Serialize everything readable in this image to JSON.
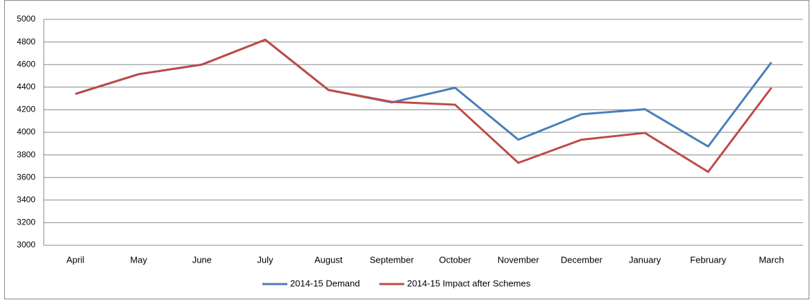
{
  "chart_data": {
    "type": "line",
    "categories": [
      "April",
      "May",
      "June",
      "July",
      "August",
      "September",
      "October",
      "November",
      "December",
      "January",
      "February",
      "March"
    ],
    "series": [
      {
        "name": "2014-15 Demand",
        "color": "#4a7ebb",
        "values": [
          4340,
          4515,
          4600,
          4820,
          4375,
          4265,
          4395,
          3935,
          4160,
          4205,
          3875,
          4620
        ]
      },
      {
        "name": "2014-15 Impact after Schemes",
        "color": "#be4b48",
        "values": [
          4340,
          4515,
          4600,
          4820,
          4375,
          4270,
          4245,
          3730,
          3935,
          3995,
          3650,
          4395
        ]
      }
    ],
    "ylim": [
      3000,
      5000
    ],
    "yticks": [
      3000,
      3200,
      3400,
      3600,
      3800,
      4000,
      4200,
      4400,
      4600,
      4800,
      5000
    ],
    "grid": true,
    "legend": "bottom"
  }
}
